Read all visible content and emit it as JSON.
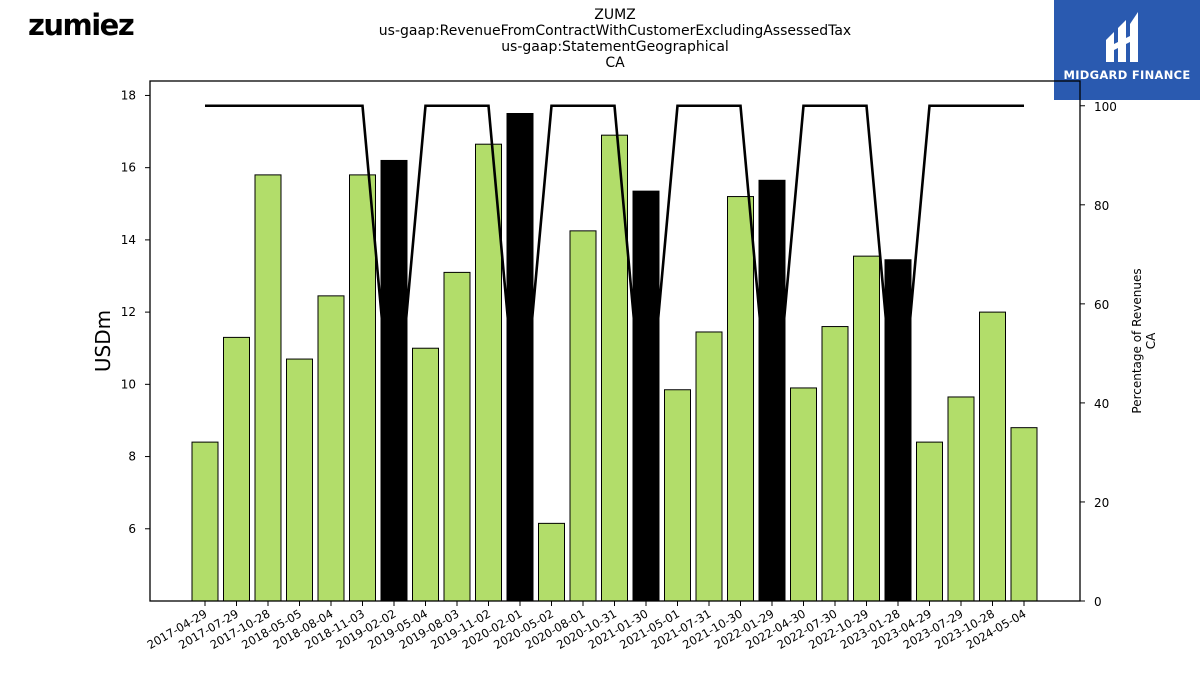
{
  "header": {
    "logo_text": "zumiez",
    "title_lines": [
      "ZUMZ",
      "us-gaap:RevenueFromContractWithCustomerExcludingAssessedTax",
      "us-gaap:StatementGeographical",
      "CA"
    ],
    "brand_text": "MIDGARD FINANCE"
  },
  "colors": {
    "bar_normal": "#b2dd6a",
    "bar_highlight": "#000000",
    "line": "#000000",
    "brand_bg": "#2a5ab0"
  },
  "chart_data": {
    "type": "bar",
    "categories": [
      "2017-04-29",
      "2017-07-29",
      "2017-10-28",
      "2018-05-05",
      "2018-08-04",
      "2018-11-03",
      "2019-02-02",
      "2019-05-04",
      "2019-08-03",
      "2019-11-02",
      "2020-02-01",
      "2020-05-02",
      "2020-08-01",
      "2020-10-31",
      "2021-01-30",
      "2021-05-01",
      "2021-07-31",
      "2021-10-30",
      "2022-01-29",
      "2022-04-30",
      "2022-07-30",
      "2022-10-29",
      "2023-01-28",
      "2023-04-29",
      "2023-07-29",
      "2023-10-28",
      "2024-05-04"
    ],
    "values": [
      8.4,
      11.3,
      15.8,
      10.7,
      12.45,
      15.8,
      16.2,
      11.0,
      13.1,
      16.65,
      17.5,
      6.15,
      14.25,
      16.9,
      15.35,
      9.85,
      11.45,
      15.2,
      15.65,
      9.9,
      11.6,
      13.55,
      13.45,
      8.4,
      9.65,
      12.0,
      8.8
    ],
    "highlight": [
      false,
      false,
      false,
      false,
      false,
      false,
      true,
      false,
      false,
      false,
      true,
      false,
      false,
      false,
      true,
      false,
      false,
      false,
      true,
      false,
      false,
      false,
      true,
      false,
      false,
      false,
      false
    ],
    "line_values": [
      100,
      100,
      100,
      100,
      100,
      100,
      30,
      100,
      100,
      100,
      30,
      100,
      100,
      100,
      30,
      100,
      100,
      100,
      30,
      100,
      100,
      100,
      30,
      100,
      100,
      100,
      100
    ],
    "ylabel": "USDm",
    "y2label_lines": [
      "Percentage of Revenues",
      "CA"
    ],
    "ylim": [
      4.0,
      18.4
    ],
    "y2lim": [
      0,
      105
    ],
    "yticks": [
      6,
      8,
      10,
      12,
      14,
      16,
      18
    ],
    "y2ticks": [
      0,
      20,
      40,
      60,
      80,
      100
    ]
  }
}
